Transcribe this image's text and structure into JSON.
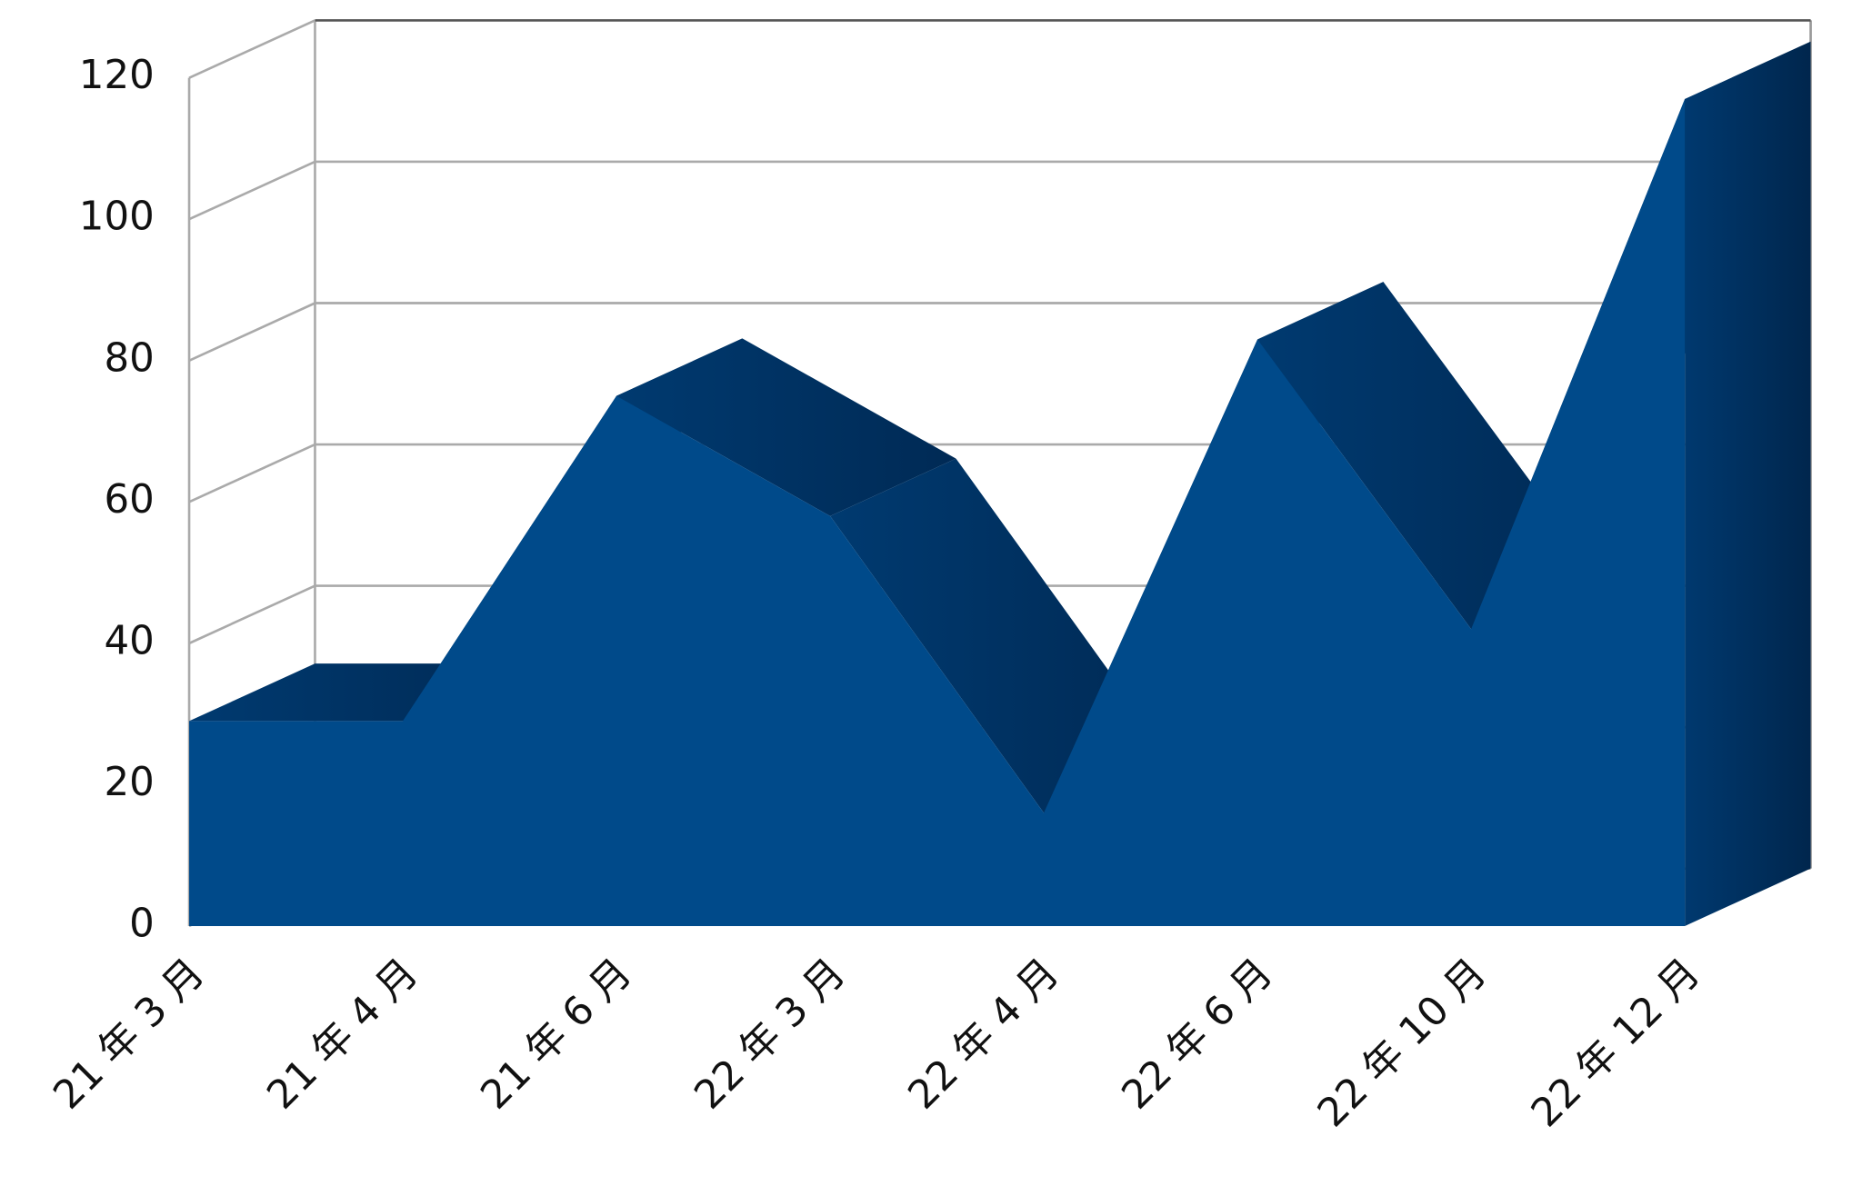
{
  "chart_data": {
    "type": "area3d",
    "categories": [
      "21 年 3 月",
      "21 年 4 月",
      "21 年 6 月",
      "22 年 3 月",
      "22 年 4 月",
      "22 年 6 月",
      "22 年 10 月",
      "22 年 12 月"
    ],
    "values": [
      29,
      29,
      75,
      58,
      16,
      83,
      42,
      117
    ],
    "color": "#004a8a",
    "ylim": [
      0,
      120
    ],
    "yticks": [
      0,
      20,
      40,
      60,
      80,
      100,
      120
    ],
    "grid": true
  }
}
